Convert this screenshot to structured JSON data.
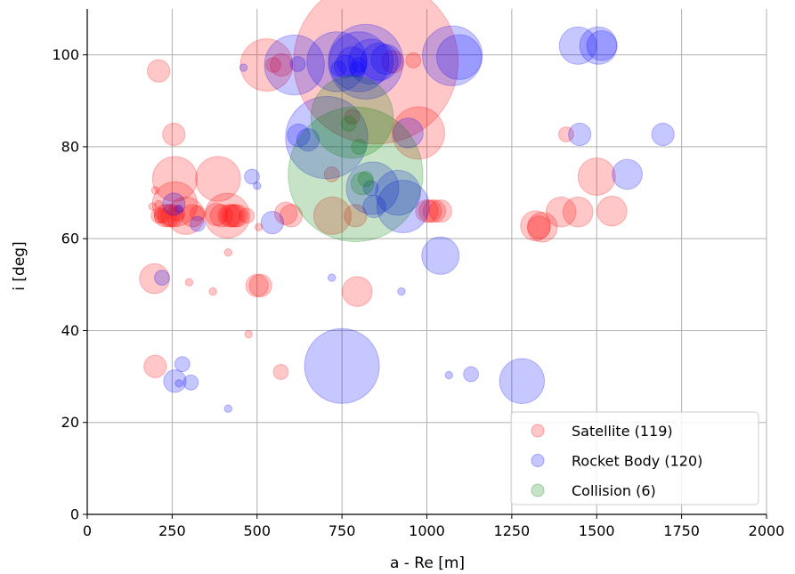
{
  "chart_data": {
    "type": "scatter",
    "xlabel": "a - Re [m]",
    "ylabel": "i [deg]",
    "xlim": [
      0,
      2000
    ],
    "ylim": [
      0,
      110
    ],
    "xticks": [
      0,
      250,
      500,
      750,
      1000,
      1250,
      1500,
      1750,
      2000
    ],
    "yticks": [
      0,
      20,
      40,
      60,
      80,
      100
    ],
    "grid": true,
    "legend_position": "lower-right",
    "series": [
      {
        "name": "Satellite (119)",
        "color": "#ff0000",
        "points": [
          [
            210,
            96.5,
            3
          ],
          [
            528,
            97.8,
            7
          ],
          [
            548,
            97.8,
            2
          ],
          [
            572,
            97.8,
            3
          ],
          [
            850,
            98.5,
            22
          ],
          [
            900,
            98.5,
            3
          ],
          [
            960,
            98.8,
            2
          ],
          [
            255,
            82.7,
            3
          ],
          [
            780,
            86.5,
            2
          ],
          [
            975,
            83,
            7
          ],
          [
            1410,
            82.7,
            2
          ],
          [
            258,
            73,
            6
          ],
          [
            385,
            73,
            6
          ],
          [
            720,
            74,
            2
          ],
          [
            1500,
            73.5,
            5
          ],
          [
            200,
            70.5,
            1
          ],
          [
            258,
            67.5,
            6
          ],
          [
            192,
            67,
            1
          ],
          [
            210,
            67.5,
            1
          ],
          [
            230,
            65,
            3
          ],
          [
            240,
            65,
            3
          ],
          [
            250,
            65,
            3
          ],
          [
            265,
            65.5,
            2
          ],
          [
            290,
            65,
            5
          ],
          [
            310,
            65,
            3
          ],
          [
            325,
            65.5,
            2
          ],
          [
            380,
            65.3,
            3
          ],
          [
            395,
            65,
            3
          ],
          [
            412,
            65,
            6
          ],
          [
            418,
            65,
            3
          ],
          [
            425,
            65,
            3
          ],
          [
            433,
            65,
            3
          ],
          [
            440,
            65,
            3
          ],
          [
            585,
            65.5,
            3
          ],
          [
            600,
            65,
            3
          ],
          [
            722,
            65,
            5
          ],
          [
            790,
            65,
            3
          ],
          [
            1000,
            66,
            3
          ],
          [
            1010,
            66,
            3
          ],
          [
            1022,
            66,
            3
          ],
          [
            1040,
            66,
            3
          ],
          [
            1320,
            62.8,
            4
          ],
          [
            1330,
            62.5,
            3
          ],
          [
            1340,
            62.5,
            4
          ],
          [
            1395,
            65.8,
            4
          ],
          [
            1445,
            65.8,
            4
          ],
          [
            1545,
            66,
            4
          ],
          [
            505,
            62.5,
            1
          ],
          [
            210,
            65,
            2
          ],
          [
            220,
            65,
            2
          ],
          [
            470,
            65,
            2
          ],
          [
            415,
            57,
            1
          ],
          [
            198,
            51.3,
            4
          ],
          [
            300,
            50.5,
            1
          ],
          [
            370,
            48.5,
            1
          ],
          [
            500,
            49.8,
            3
          ],
          [
            510,
            49.8,
            3
          ],
          [
            795,
            48.5,
            4
          ],
          [
            475,
            39.2,
            1
          ],
          [
            200,
            32.2,
            3
          ],
          [
            570,
            31,
            2
          ]
        ]
      },
      {
        "name": "Rocket Body (120)",
        "color": "#0000ff",
        "points": [
          [
            610,
            97.8,
            8
          ],
          [
            735,
            98.5,
            8
          ],
          [
            760,
            97.5,
            3
          ],
          [
            780,
            98.5,
            4
          ],
          [
            800,
            98.5,
            8
          ],
          [
            820,
            98.5,
            10
          ],
          [
            835,
            98.5,
            6
          ],
          [
            860,
            98.5,
            5
          ],
          [
            880,
            99,
            4
          ],
          [
            620,
            98,
            2
          ],
          [
            1075,
            99.8,
            8
          ],
          [
            1095,
            99.5,
            6
          ],
          [
            1445,
            102,
            5
          ],
          [
            1505,
            102,
            5
          ],
          [
            1515,
            102,
            4
          ],
          [
            740,
            97,
            2
          ],
          [
            795,
            96.8,
            2
          ],
          [
            800,
            97.8,
            2
          ],
          [
            460,
            97.2,
            1
          ],
          [
            705,
            82,
            11
          ],
          [
            622,
            82.5,
            3
          ],
          [
            650,
            81.5,
            3
          ],
          [
            945,
            83,
            4
          ],
          [
            1450,
            82.7,
            3
          ],
          [
            1695,
            82.7,
            3
          ],
          [
            485,
            73.5,
            2
          ],
          [
            500,
            71.5,
            1
          ],
          [
            840,
            71,
            7
          ],
          [
            835,
            71,
            2
          ],
          [
            915,
            70,
            6
          ],
          [
            930,
            67,
            7
          ],
          [
            845,
            67,
            3
          ],
          [
            255,
            67.5,
            3
          ],
          [
            270,
            66.5,
            1
          ],
          [
            325,
            63.2,
            2
          ],
          [
            545,
            63.5,
            3
          ],
          [
            1590,
            74,
            4
          ],
          [
            720,
            51.5,
            1
          ],
          [
            925,
            48.5,
            1
          ],
          [
            1040,
            56.3,
            5
          ],
          [
            220,
            51.5,
            2
          ],
          [
            750,
            32.3,
            10
          ],
          [
            1065,
            30.3,
            1
          ],
          [
            1130,
            30.5,
            2
          ],
          [
            1280,
            29,
            6
          ],
          [
            258,
            29,
            3
          ],
          [
            280,
            32.7,
            2
          ],
          [
            305,
            28.7,
            2
          ],
          [
            415,
            23,
            1
          ],
          [
            270,
            28.5,
            1
          ]
        ]
      },
      {
        "name": "Collision (6)",
        "color": "#008000",
        "points": [
          [
            780,
            86.5,
            11
          ],
          [
            790,
            74,
            18
          ],
          [
            810,
            72,
            3
          ],
          [
            770,
            85,
            2
          ],
          [
            800,
            80,
            2
          ],
          [
            820,
            73,
            2
          ]
        ]
      }
    ]
  }
}
